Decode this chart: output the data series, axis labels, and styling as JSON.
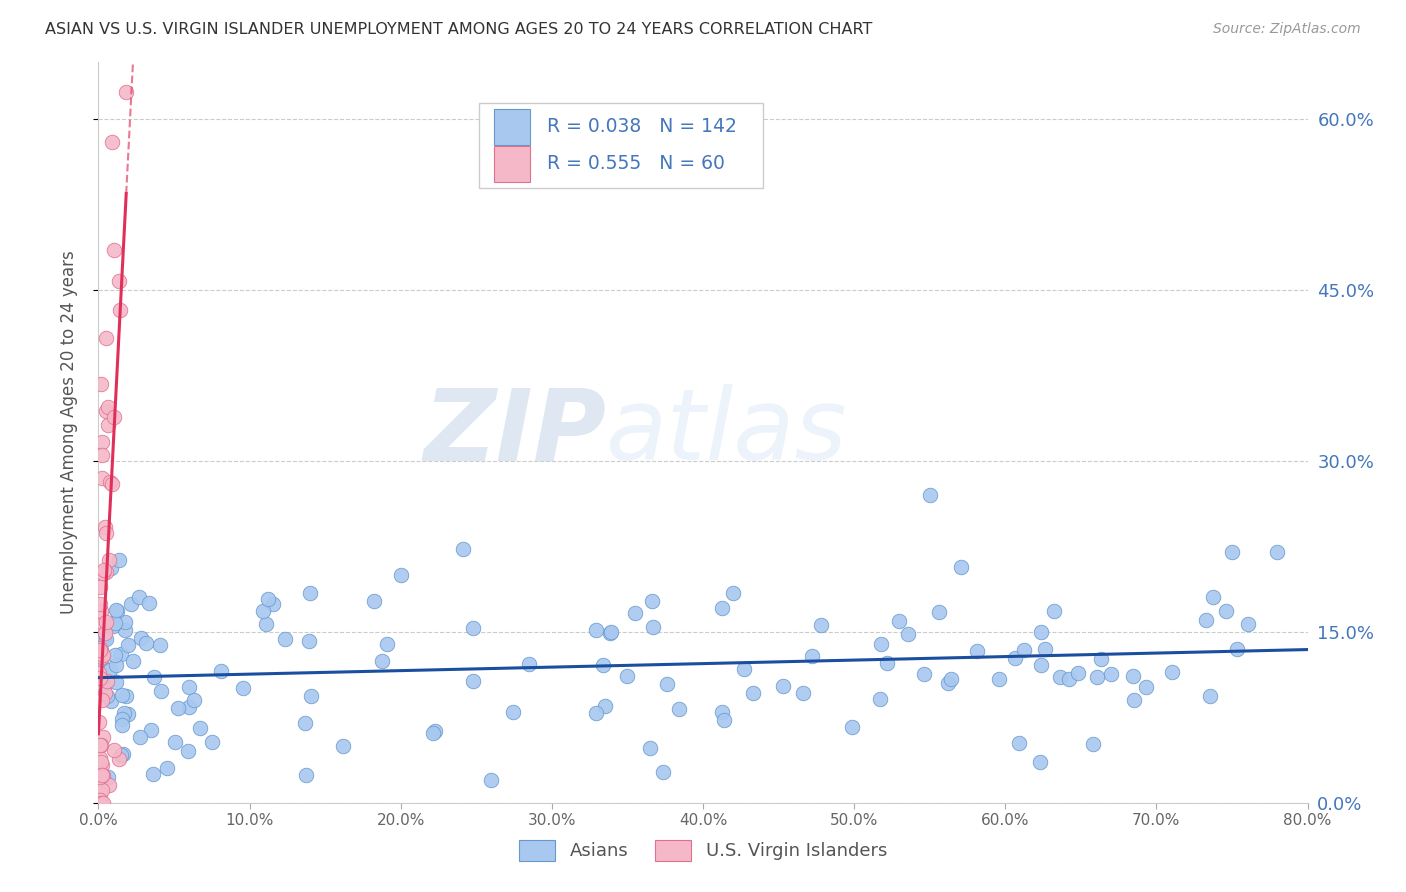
{
  "title": "ASIAN VS U.S. VIRGIN ISLANDER UNEMPLOYMENT AMONG AGES 20 TO 24 YEARS CORRELATION CHART",
  "source": "Source: ZipAtlas.com",
  "ylabel": "Unemployment Among Ages 20 to 24 years",
  "xlim": [
    0.0,
    0.8
  ],
  "ylim": [
    0.0,
    0.65
  ],
  "yticks": [
    0.0,
    0.15,
    0.3,
    0.45,
    0.6
  ],
  "ytick_labels": [
    "0.0%",
    "15.0%",
    "30.0%",
    "45.0%",
    "60.0%"
  ],
  "xticks": [
    0.0,
    0.1,
    0.2,
    0.3,
    0.4,
    0.5,
    0.6,
    0.7,
    0.8
  ],
  "xtick_labels": [
    "0.0%",
    "10.0%",
    "20.0%",
    "30.0%",
    "40.0%",
    "50.0%",
    "60.0%",
    "70.0%",
    "80.0%"
  ],
  "grid_color": "#cccccc",
  "background_color": "#ffffff",
  "asian_color": "#a8c8f0",
  "asian_edge_color": "#6699cc",
  "vi_color": "#f5b8c8",
  "vi_edge_color": "#e07090",
  "asian_R": 0.038,
  "asian_N": 142,
  "vi_R": 0.555,
  "vi_N": 60,
  "asian_line_color": "#1a4fa0",
  "vi_line_color": "#e0305a",
  "watermark_zip": "ZIP",
  "watermark_atlas": "atlas",
  "watermark_color": "#d0dff0",
  "watermark_color2": "#c0d0e8",
  "legend_label_asian": "Asians",
  "legend_label_vi": "U.S. Virgin Islanders",
  "title_color": "#333333",
  "axis_label_color": "#555555",
  "right_tick_color": "#4477bb",
  "marker_size": 110
}
